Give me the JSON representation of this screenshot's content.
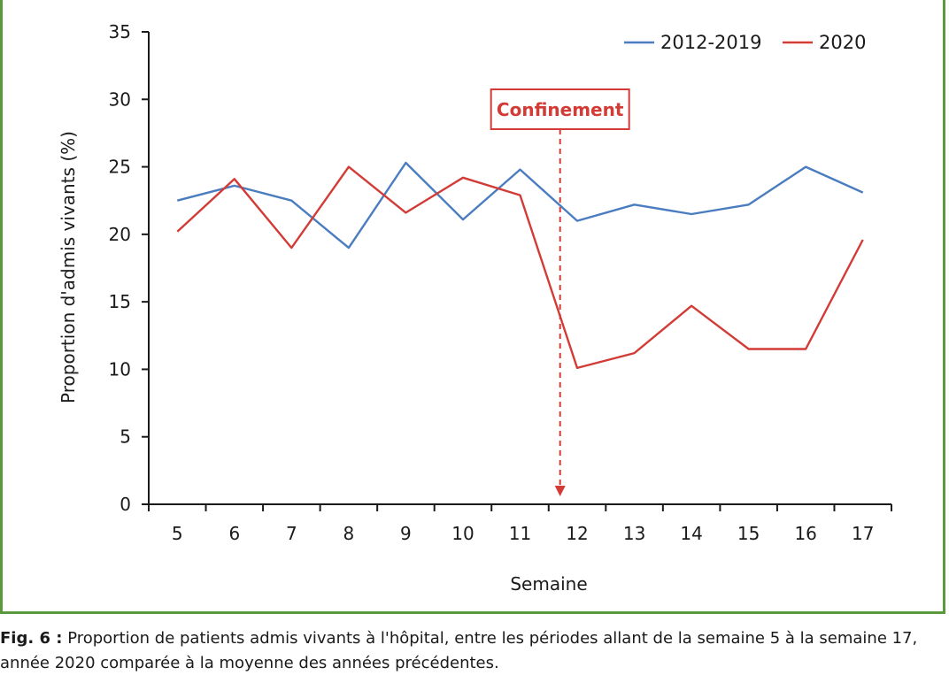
{
  "chart_data": {
    "type": "line",
    "x": [
      5,
      6,
      7,
      8,
      9,
      10,
      11,
      12,
      13,
      14,
      15,
      16,
      17
    ],
    "series": [
      {
        "name": "2012-2019",
        "color": "#4a7cc0",
        "values": [
          22.5,
          23.6,
          22.5,
          19.0,
          25.3,
          21.1,
          24.8,
          21.0,
          22.2,
          21.5,
          22.2,
          25.0,
          23.1
        ]
      },
      {
        "name": "2020",
        "color": "#d23b36",
        "values": [
          20.2,
          24.1,
          19.0,
          25.0,
          21.6,
          24.2,
          22.9,
          10.1,
          11.2,
          14.7,
          11.5,
          11.5,
          19.6
        ]
      }
    ],
    "xlabel": "Semaine",
    "ylabel": "Proportion d'admis vivants (%)",
    "ylim": [
      0,
      35
    ],
    "yticks": [
      0,
      5,
      10,
      15,
      20,
      25,
      30,
      35
    ],
    "grid": false,
    "legend": "top-right",
    "annotation": {
      "text": "Confinement",
      "x": 11.7,
      "color": "#d23b36"
    }
  },
  "caption": {
    "label": "Fig. 6 :",
    "text": "Proportion de patients admis vivants à l'hôpital, entre les périodes allant de la semaine 5 à la semaine 17, année 2020 comparée à la moyenne des années précédentes."
  }
}
